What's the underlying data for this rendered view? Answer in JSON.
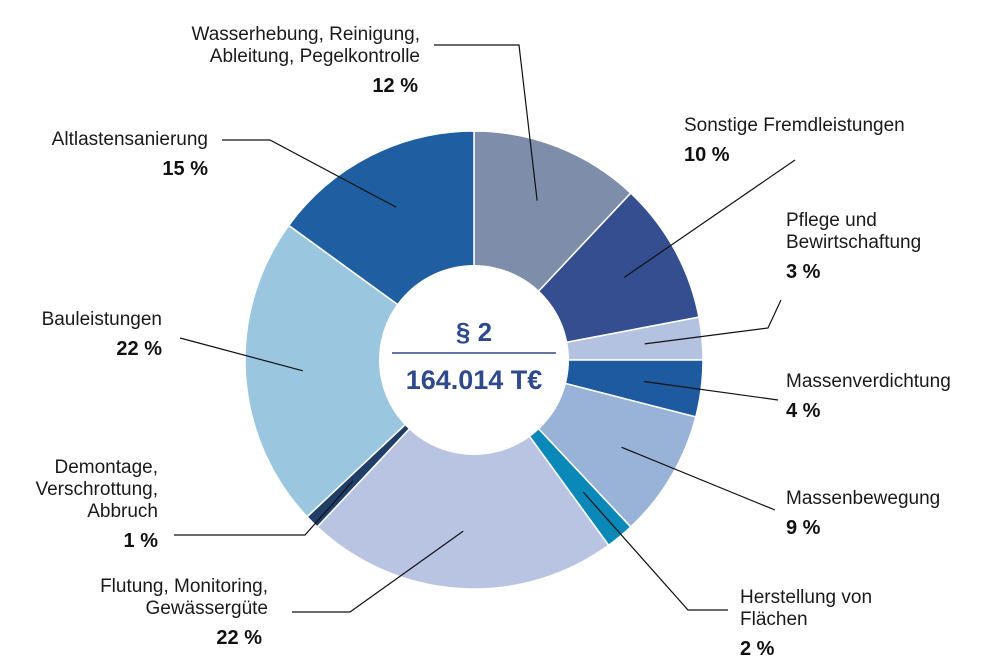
{
  "chart_data": {
    "type": "pie",
    "center_label": {
      "top": "§ 2",
      "bottom": "164.014 T€"
    },
    "unit": "%",
    "slices": [
      {
        "label": [
          "Wasserhebung, Reinigung,",
          "Ableitung, Pegelkontrolle"
        ],
        "value": 12,
        "value_label": "12 %",
        "color": "#7e8daa"
      },
      {
        "label": [
          "Sonstige Fremdleistungen"
        ],
        "value": 10,
        "value_label": "10 %",
        "color": "#344e90"
      },
      {
        "label": [
          "Pflege und",
          "Bewirtschaftung"
        ],
        "value": 3,
        "value_label": "3 %",
        "color": "#b4c2e1"
      },
      {
        "label": [
          "Massenverdichtung"
        ],
        "value": 4,
        "value_label": "4 %",
        "color": "#1e5aa0"
      },
      {
        "label": [
          "Massenbewegung"
        ],
        "value": 9,
        "value_label": "9 %",
        "color": "#98b2d8"
      },
      {
        "label": [
          "Herstellung von",
          "Flächen"
        ],
        "value": 2,
        "value_label": "2 %",
        "color": "#0a88b8"
      },
      {
        "label": [
          "Flutung, Monitoring,",
          "Gewässergüte"
        ],
        "value": 22,
        "value_label": "22 %",
        "color": "#b9c4e2"
      },
      {
        "label": [
          "Demontage,",
          "Verschrottung,",
          "Abbruch"
        ],
        "value": 1,
        "value_label": "1 %",
        "color": "#203e68"
      },
      {
        "label": [
          "Bauleistungen"
        ],
        "value": 22,
        "value_label": "22 %",
        "color": "#9bc6df"
      },
      {
        "label": [
          "Altlastensanierung"
        ],
        "value": 15,
        "value_label": "15 %",
        "color": "#1f5ea0"
      }
    ]
  }
}
